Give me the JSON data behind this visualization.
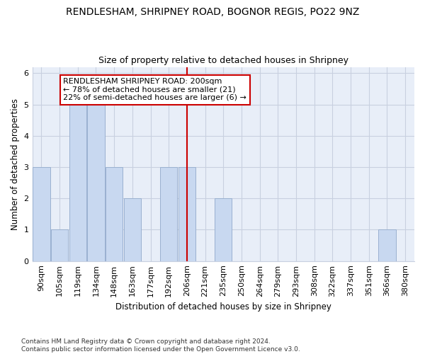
{
  "title1": "RENDLESHAM, SHRIPNEY ROAD, BOGNOR REGIS, PO22 9NZ",
  "title2": "Size of property relative to detached houses in Shripney",
  "xlabel": "Distribution of detached houses by size in Shripney",
  "ylabel": "Number of detached properties",
  "categories": [
    "90sqm",
    "105sqm",
    "119sqm",
    "134sqm",
    "148sqm",
    "163sqm",
    "177sqm",
    "192sqm",
    "206sqm",
    "221sqm",
    "235sqm",
    "250sqm",
    "264sqm",
    "279sqm",
    "293sqm",
    "308sqm",
    "322sqm",
    "337sqm",
    "351sqm",
    "366sqm",
    "380sqm"
  ],
  "values": [
    3,
    1,
    5,
    5,
    3,
    2,
    0,
    3,
    3,
    0,
    2,
    0,
    0,
    0,
    0,
    0,
    0,
    0,
    0,
    1,
    0
  ],
  "bar_color": "#c8d8f0",
  "bar_edge_color": "#9ab0d0",
  "vline_x": 8,
  "vline_color": "#cc0000",
  "annotation_text": "RENDLESHAM SHRIPNEY ROAD: 200sqm\n← 78% of detached houses are smaller (21)\n22% of semi-detached houses are larger (6) →",
  "annotation_box_color": "#ffffff",
  "annotation_box_edge": "#cc0000",
  "ylim": [
    0,
    6.2
  ],
  "yticks": [
    0,
    1,
    2,
    3,
    4,
    5,
    6
  ],
  "footnote": "Contains HM Land Registry data © Crown copyright and database right 2024.\nContains public sector information licensed under the Open Government Licence v3.0.",
  "bg_color": "#ffffff",
  "plot_bg_color": "#e8eef8",
  "grid_color": "#c8d0e0",
  "title1_fontsize": 10,
  "title2_fontsize": 9,
  "axis_fontsize": 8.5,
  "tick_fontsize": 8,
  "footnote_fontsize": 6.5,
  "annot_fontsize": 8
}
